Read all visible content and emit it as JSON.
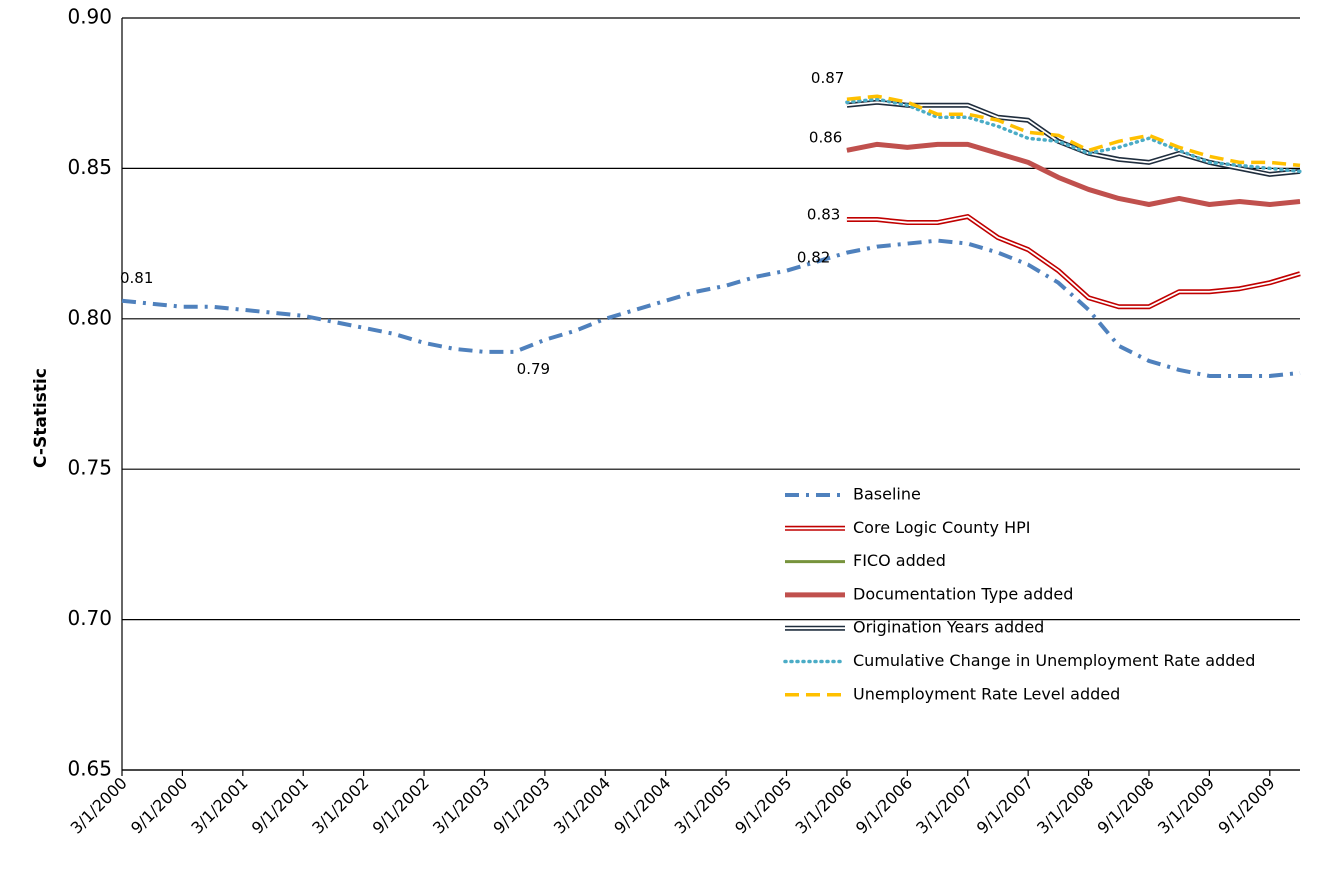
{
  "chart_data": {
    "type": "line",
    "y_label": "C-Statistic",
    "categories": [
      "3/1/2000",
      null,
      "9/1/2000",
      null,
      "3/1/2001",
      null,
      "9/1/2001",
      null,
      "3/1/2002",
      null,
      "9/1/2002",
      null,
      "3/1/2003",
      null,
      "9/1/2003",
      null,
      "3/1/2004",
      null,
      "9/1/2004",
      null,
      "3/1/2005",
      null,
      "9/1/2005",
      null,
      "3/1/2006",
      null,
      "9/1/2006",
      null,
      "3/1/2007",
      null,
      "9/1/2007",
      null,
      "3/1/2008",
      null,
      "9/1/2008",
      null,
      "3/1/2009",
      null,
      "9/1/2009",
      null
    ],
    "ylim": [
      0.65,
      0.9
    ],
    "yticks": [
      0.65,
      {
        "value": 0.7,
        "label": "0.70"
      },
      0.75,
      {
        "value": 0.8,
        "label": "0.80"
      },
      0.85,
      {
        "value": 0.9,
        "label": "0.90"
      }
    ],
    "grid": true,
    "legend": "lower right",
    "series": [
      {
        "name": "Baseline",
        "color": "#4f81bd",
        "style": "dashdot",
        "values": [
          0.806,
          0.805,
          0.804,
          0.804,
          0.803,
          0.802,
          0.801,
          0.799,
          0.797,
          0.795,
          0.792,
          0.79,
          0.789,
          0.789,
          0.793,
          0.796,
          0.8,
          0.803,
          0.806,
          0.809,
          0.811,
          0.814,
          0.816,
          0.819,
          0.822,
          0.824,
          0.825,
          0.826,
          0.825,
          0.822,
          0.818,
          0.812,
          0.803,
          0.791,
          0.786,
          0.783,
          0.781,
          0.781,
          0.781,
          0.782
        ],
        "value_labels": [
          "0.81",
          null,
          null,
          null,
          null,
          null,
          null,
          null,
          null,
          null,
          null,
          null,
          null,
          "0.79",
          null,
          null,
          null,
          null,
          null,
          null,
          null,
          null,
          null,
          null,
          "0.82",
          null,
          null,
          null,
          null,
          null,
          null,
          null,
          null,
          null,
          null,
          null,
          null,
          null,
          null,
          null
        ]
      },
      {
        "name": "Core Logic County HPI",
        "color": "#c00000",
        "style": "double",
        "values": [
          null,
          null,
          null,
          null,
          null,
          null,
          null,
          null,
          null,
          null,
          null,
          null,
          null,
          null,
          null,
          null,
          null,
          null,
          null,
          null,
          null,
          null,
          null,
          null,
          0.833,
          0.833,
          0.832,
          0.832,
          0.834,
          0.827,
          0.823,
          0.816,
          0.807,
          0.804,
          0.804,
          0.809,
          0.809,
          0.81,
          0.812,
          0.815
        ],
        "value_labels": [
          null,
          null,
          null,
          null,
          null,
          null,
          null,
          null,
          null,
          null,
          null,
          null,
          null,
          null,
          null,
          null,
          null,
          null,
          null,
          null,
          null,
          null,
          null,
          null,
          "0.83",
          null,
          null,
          null,
          null,
          null,
          null,
          null,
          null,
          null,
          null,
          null,
          null,
          null,
          null,
          null
        ]
      },
      {
        "name": "FICO added",
        "color": "#77933c",
        "style": "solid",
        "values": [
          null,
          null,
          null,
          null,
          null,
          null,
          null,
          null,
          null,
          null,
          null,
          null,
          null,
          null,
          null,
          null,
          null,
          null,
          null,
          null,
          null,
          null,
          null,
          null,
          0.856,
          0.858,
          0.857,
          0.858,
          0.858,
          0.855,
          0.852,
          0.847,
          0.843,
          0.84,
          0.838,
          0.84,
          0.838,
          0.839,
          0.838,
          0.839
        ]
      },
      {
        "name": "Documentation Type added",
        "color": "#c0504d",
        "style": "thick",
        "values": [
          null,
          null,
          null,
          null,
          null,
          null,
          null,
          null,
          null,
          null,
          null,
          null,
          null,
          null,
          null,
          null,
          null,
          null,
          null,
          null,
          null,
          null,
          null,
          null,
          0.856,
          0.858,
          0.857,
          0.858,
          0.858,
          0.855,
          0.852,
          0.847,
          0.843,
          0.84,
          0.838,
          0.84,
          0.838,
          0.839,
          0.838,
          0.839
        ],
        "value_labels": [
          null,
          null,
          null,
          null,
          null,
          null,
          null,
          null,
          null,
          null,
          null,
          null,
          null,
          null,
          null,
          null,
          null,
          null,
          null,
          null,
          null,
          null,
          null,
          null,
          "0.86",
          null,
          null,
          null,
          null,
          null,
          null,
          null,
          null,
          null,
          null,
          null,
          null,
          null,
          null,
          null
        ]
      },
      {
        "name": "Origination Years added",
        "color": "#1f2d3d",
        "style": "double",
        "values": [
          null,
          null,
          null,
          null,
          null,
          null,
          null,
          null,
          null,
          null,
          null,
          null,
          null,
          null,
          null,
          null,
          null,
          null,
          null,
          null,
          null,
          null,
          null,
          null,
          0.871,
          0.872,
          0.871,
          0.871,
          0.871,
          0.867,
          0.866,
          0.859,
          0.855,
          0.853,
          0.852,
          0.855,
          0.852,
          0.85,
          0.848,
          0.849
        ]
      },
      {
        "name": "Cumulative Change in Unemployment Rate added",
        "color": "#4bacc6",
        "style": "dotted",
        "values": [
          null,
          null,
          null,
          null,
          null,
          null,
          null,
          null,
          null,
          null,
          null,
          null,
          null,
          null,
          null,
          null,
          null,
          null,
          null,
          null,
          null,
          null,
          null,
          null,
          0.872,
          0.873,
          0.871,
          0.867,
          0.867,
          0.864,
          0.86,
          0.859,
          0.855,
          0.857,
          0.86,
          0.856,
          0.852,
          0.851,
          0.85,
          0.849
        ]
      },
      {
        "name": "Unemployment Rate Level added",
        "color": "#ffc000",
        "style": "dashed",
        "values": [
          null,
          null,
          null,
          null,
          null,
          null,
          null,
          null,
          null,
          null,
          null,
          null,
          null,
          null,
          null,
          null,
          null,
          null,
          null,
          null,
          null,
          null,
          null,
          null,
          0.873,
          0.874,
          0.872,
          0.868,
          0.868,
          0.866,
          0.862,
          0.861,
          0.856,
          0.859,
          0.861,
          0.857,
          0.854,
          0.852,
          0.852,
          0.851
        ],
        "value_labels": [
          null,
          null,
          null,
          null,
          null,
          null,
          null,
          null,
          null,
          null,
          null,
          null,
          null,
          null,
          null,
          null,
          null,
          null,
          null,
          null,
          null,
          null,
          null,
          null,
          "0.87",
          null,
          null,
          null,
          null,
          null,
          null,
          null,
          null,
          null,
          null,
          null,
          null,
          null,
          null,
          null
        ]
      }
    ]
  }
}
